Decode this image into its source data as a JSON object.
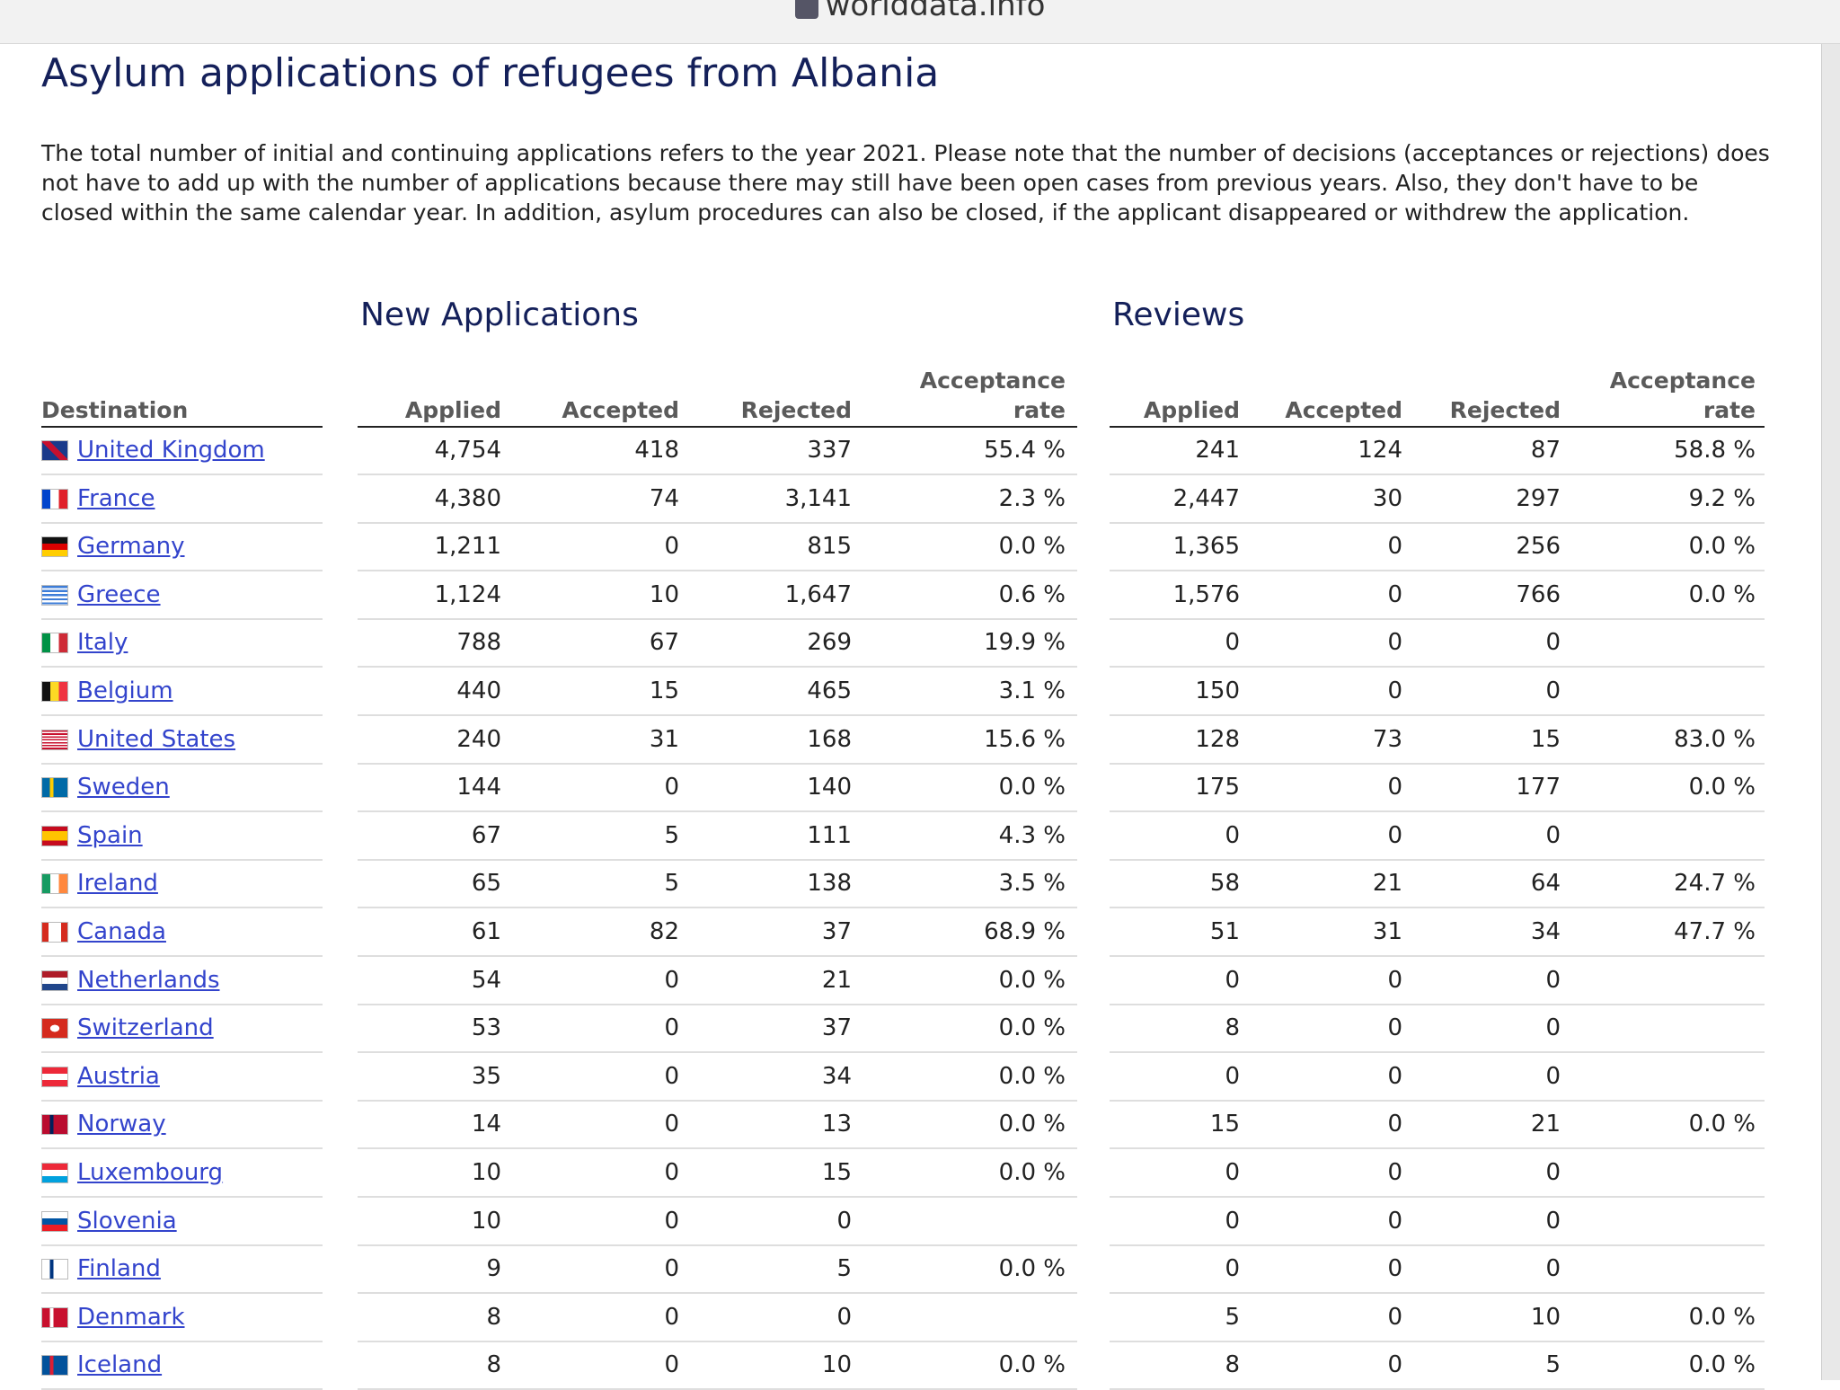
{
  "header": {
    "site": "worlddata.info"
  },
  "title": "Asylum applications of refugees from Albania",
  "intro": "The total number of initial and continuing applications refers to the year 2021. Please note that the number of decisions (acceptances or rejections) does not have to add up with the number of applications because there may still have been open cases from previous years. Also, they don't have to be closed within the same calendar year. In addition, asylum procedures can also be closed, if the applicant disappeared or withdrew the application.",
  "table": {
    "groups": [
      "New Applications",
      "Reviews"
    ],
    "columns": [
      "Destination",
      "Applied",
      "Accepted",
      "Rejected",
      "Acceptance rate",
      "Applied",
      "Accepted",
      "Rejected",
      "Acceptance rate"
    ],
    "rows": [
      [
        "United Kingdom",
        "4,754",
        "418",
        "337",
        "55.4 %",
        "241",
        "124",
        "87",
        "58.8 %"
      ],
      [
        "France",
        "4,380",
        "74",
        "3,141",
        "2.3 %",
        "2,447",
        "30",
        "297",
        "9.2 %"
      ],
      [
        "Germany",
        "1,211",
        "0",
        "815",
        "0.0 %",
        "1,365",
        "0",
        "256",
        "0.0 %"
      ],
      [
        "Greece",
        "1,124",
        "10",
        "1,647",
        "0.6 %",
        "1,576",
        "0",
        "766",
        "0.0 %"
      ],
      [
        "Italy",
        "788",
        "67",
        "269",
        "19.9 %",
        "0",
        "0",
        "0",
        null
      ],
      [
        "Belgium",
        "440",
        "15",
        "465",
        "3.1 %",
        "150",
        "0",
        "0",
        null
      ],
      [
        "United States",
        "240",
        "31",
        "168",
        "15.6 %",
        "128",
        "73",
        "15",
        "83.0 %"
      ],
      [
        "Sweden",
        "144",
        "0",
        "140",
        "0.0 %",
        "175",
        "0",
        "177",
        "0.0 %"
      ],
      [
        "Spain",
        "67",
        "5",
        "111",
        "4.3 %",
        "0",
        "0",
        "0",
        null
      ],
      [
        "Ireland",
        "65",
        "5",
        "138",
        "3.5 %",
        "58",
        "21",
        "64",
        "24.7 %"
      ],
      [
        "Canada",
        "61",
        "82",
        "37",
        "68.9 %",
        "51",
        "31",
        "34",
        "47.7 %"
      ],
      [
        "Netherlands",
        "54",
        "0",
        "21",
        "0.0 %",
        "0",
        "0",
        "0",
        null
      ],
      [
        "Switzerland",
        "53",
        "0",
        "37",
        "0.0 %",
        "8",
        "0",
        "0",
        null
      ],
      [
        "Austria",
        "35",
        "0",
        "34",
        "0.0 %",
        "0",
        "0",
        "0",
        null
      ],
      [
        "Norway",
        "14",
        "0",
        "13",
        "0.0 %",
        "15",
        "0",
        "21",
        "0.0 %"
      ],
      [
        "Luxembourg",
        "10",
        "0",
        "15",
        "0.0 %",
        "0",
        "0",
        "0",
        null
      ],
      [
        "Slovenia",
        "10",
        "0",
        "0",
        null,
        "0",
        "0",
        "0",
        null
      ],
      [
        "Finland",
        "9",
        "0",
        "5",
        "0.0 %",
        "0",
        "0",
        "0",
        null
      ],
      [
        "Denmark",
        "8",
        "0",
        "0",
        null,
        "5",
        "0",
        "10",
        "0.0 %"
      ],
      [
        "Iceland",
        "8",
        "0",
        "10",
        "0.0 %",
        "8",
        "0",
        "5",
        "0.0 %"
      ]
    ]
  }
}
